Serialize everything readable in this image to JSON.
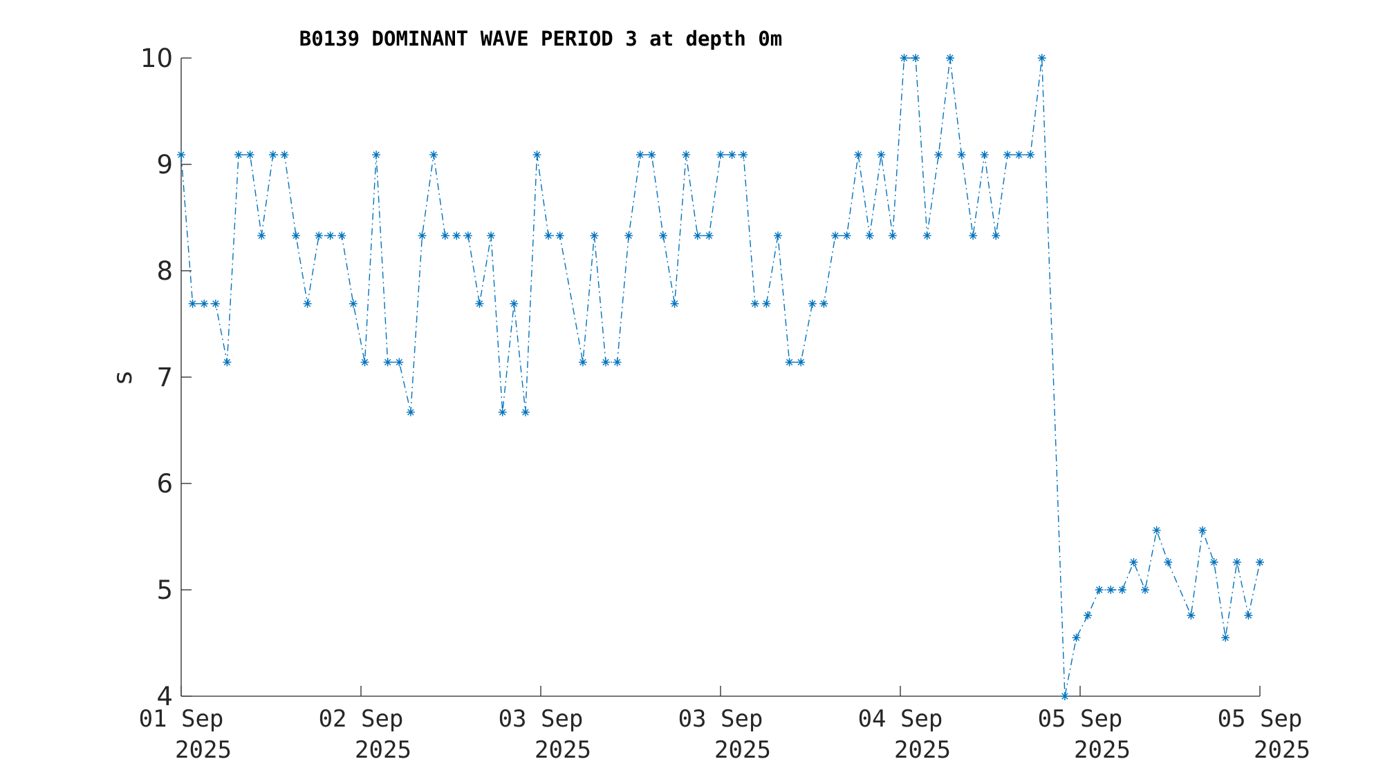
{
  "chart_data": {
    "type": "line",
    "title": "B0139 DOMINANT WAVE PERIOD 3 at depth 0m",
    "xlabel": "",
    "ylabel": "s",
    "ylim": [
      4,
      10
    ],
    "yticks": [
      4,
      5,
      6,
      7,
      8,
      9,
      10
    ],
    "xticks": [
      {
        "day": "01 Sep",
        "year": "2025"
      },
      {
        "day": "02 Sep",
        "year": "2025"
      },
      {
        "day": "03 Sep",
        "year": "2025"
      },
      {
        "day": "03 Sep",
        "year": "2025"
      },
      {
        "day": "04 Sep",
        "year": "2025"
      },
      {
        "day": "05 Sep",
        "year": "2025"
      },
      {
        "day": "05 Sep",
        "year": "2025"
      }
    ],
    "grid": false,
    "line_style": "dash-dot with asterisk markers",
    "color": "#0072BD",
    "series": [
      {
        "values": [
          9.09,
          7.69,
          7.69,
          7.69,
          7.14,
          9.09,
          9.09,
          8.33,
          9.09,
          9.09,
          8.33,
          7.69,
          8.33,
          8.33,
          8.33,
          7.69,
          7.14,
          9.09,
          7.14,
          7.14,
          6.67,
          8.33,
          9.09,
          8.33,
          8.33,
          8.33,
          7.69,
          8.33,
          6.67,
          7.69,
          6.67,
          9.09,
          8.33,
          8.33,
          7.14,
          8.33,
          7.14,
          7.14,
          8.33,
          9.09,
          9.09,
          8.33,
          7.69,
          9.09,
          8.33,
          8.33,
          9.09,
          9.09,
          9.09,
          7.69,
          7.69,
          8.33,
          7.14,
          7.14,
          7.69,
          7.69,
          8.33,
          8.33,
          9.09,
          8.33,
          9.09,
          8.33,
          10,
          10,
          8.33,
          9.09,
          10,
          9.09,
          8.33,
          9.09,
          8.33,
          9.09,
          9.09,
          9.09,
          10,
          4,
          4.55,
          4.76,
          5,
          5,
          5,
          5.26,
          5,
          5.56,
          5.26,
          4.76,
          5.56,
          5.26,
          4.55,
          5.26,
          4.76,
          5.26
        ],
        "x_index": [
          0,
          1,
          2,
          3,
          4,
          5,
          6,
          7,
          8,
          9,
          10,
          11,
          12,
          13,
          14,
          15,
          16,
          17,
          18,
          19,
          20,
          21,
          22,
          23,
          24,
          25,
          26,
          27,
          28,
          29,
          30,
          31,
          32,
          33,
          35,
          36,
          37,
          38,
          39,
          40,
          41,
          42,
          43,
          44,
          45,
          46,
          47,
          48,
          49,
          50,
          51,
          52,
          53,
          54,
          55,
          56,
          57,
          58,
          59,
          60,
          61,
          62,
          63,
          64,
          65,
          66,
          67,
          68,
          69,
          70,
          71,
          72,
          73,
          74,
          75,
          77,
          78,
          79,
          80,
          81,
          82,
          83,
          84,
          85,
          86,
          88,
          89,
          90,
          91,
          92,
          93,
          94
        ]
      }
    ]
  }
}
